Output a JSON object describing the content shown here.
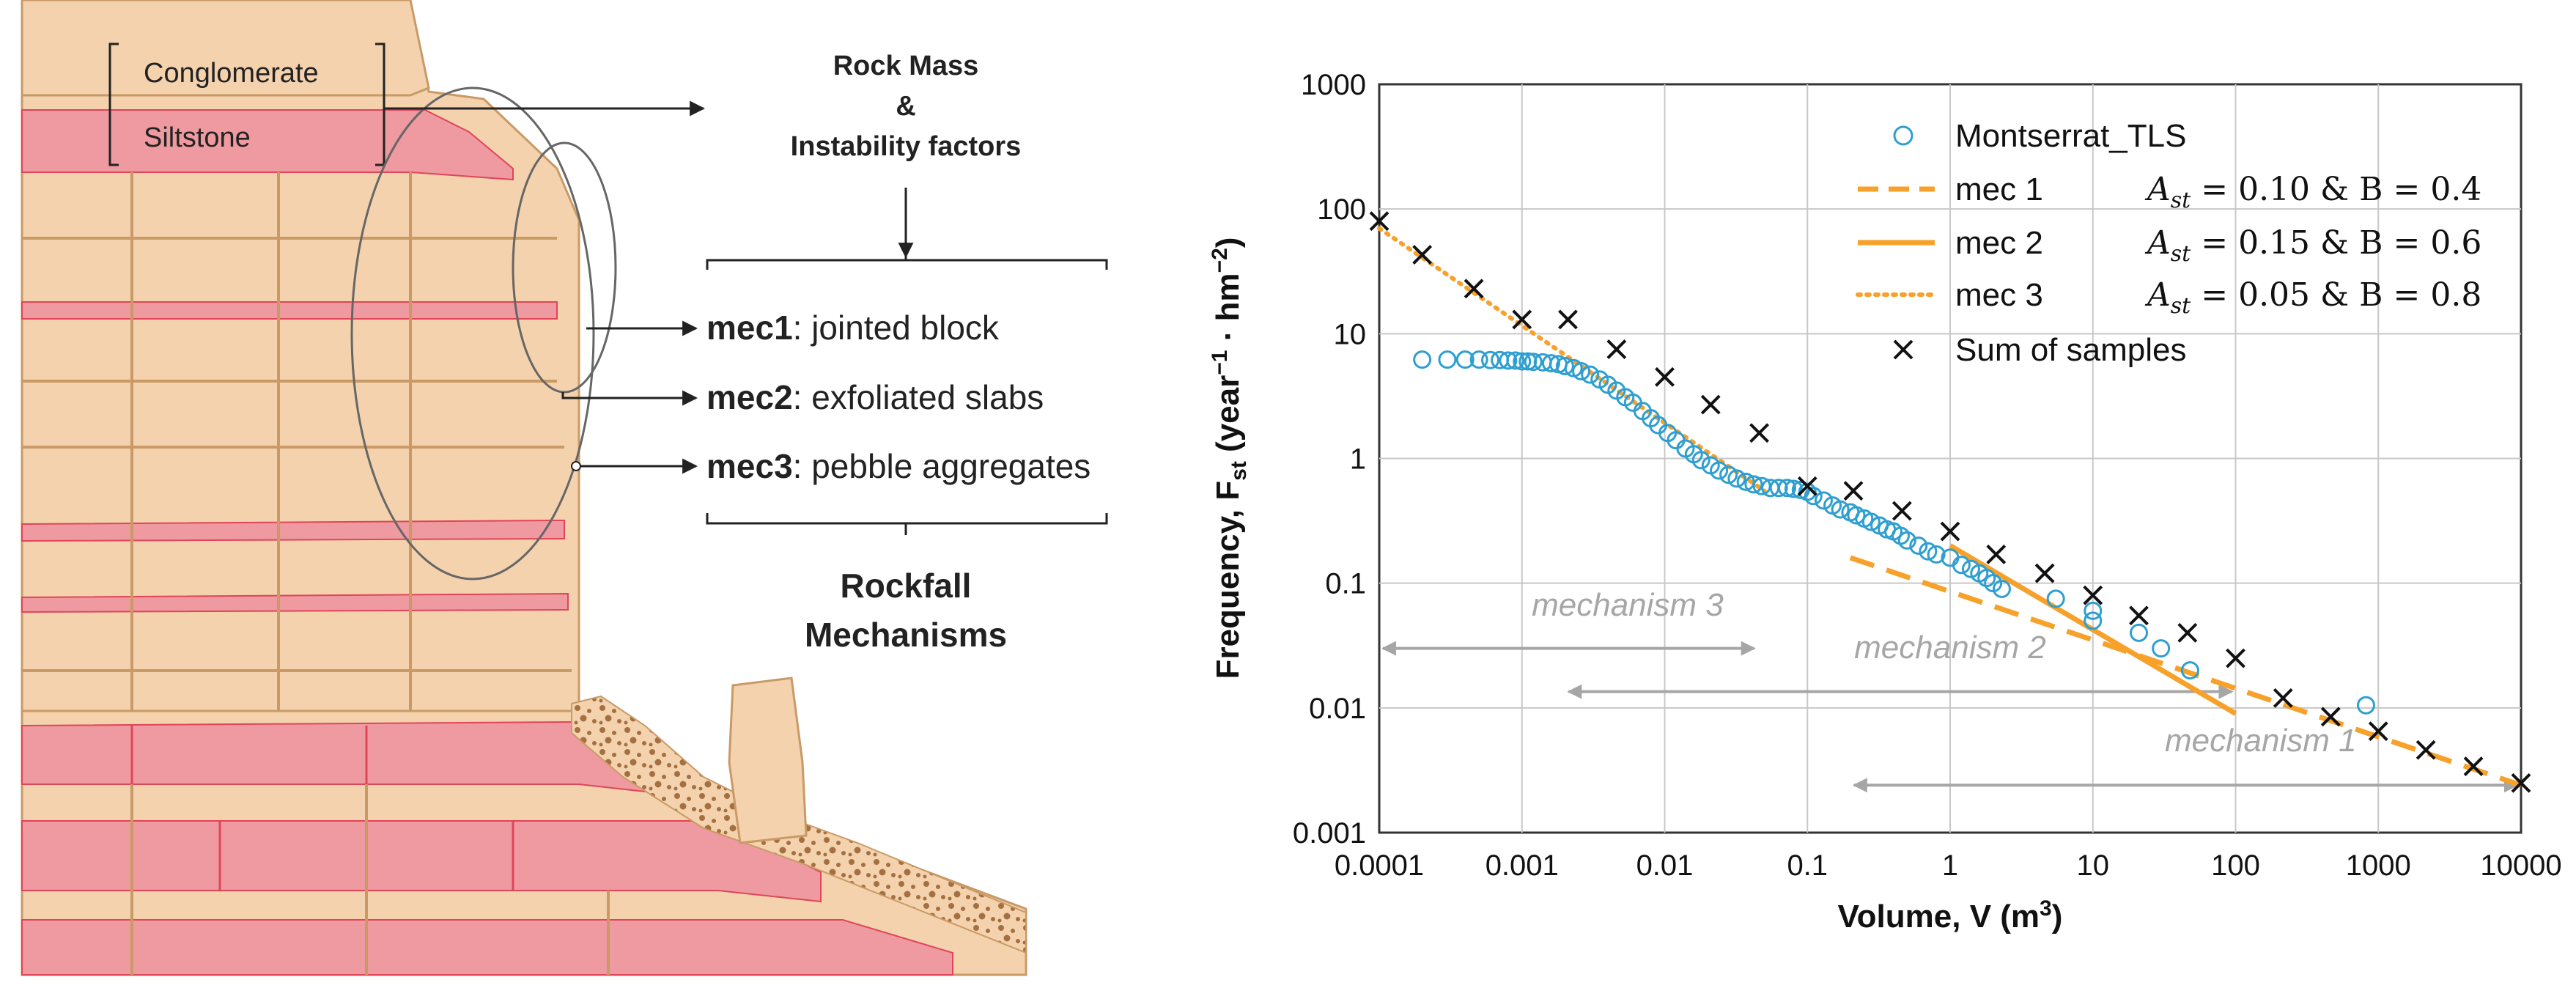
{
  "diagram": {
    "layers": {
      "conglomerate": "Conglomerate",
      "siltstone": "Siltstone"
    },
    "rock_mass_title_line1": "Rock Mass",
    "rock_mass_title_line2": "&",
    "rock_mass_title_line3": "Instability factors",
    "mechanisms": [
      {
        "name": "mec1",
        "desc": ": jointed block"
      },
      {
        "name": "mec2",
        "desc": ": exfoliated slabs"
      },
      {
        "name": "mec3",
        "desc": ": pebble aggregates"
      }
    ],
    "footer_line1": "Rockfall",
    "footer_line2": "Mechanisms",
    "colors": {
      "sand": "#f3d2ad",
      "siltstone": "#ee9aa0",
      "siltstone_stroke": "#e0455a",
      "outline": "#c99a66",
      "debris": "#a47042"
    }
  },
  "chart_data": {
    "type": "scatter",
    "title": "",
    "xlabel_main": "Volume, V (m",
    "xlabel_sup": "3",
    "xlabel_close": ")",
    "ylabel_main": "Frequency, F",
    "ylabel_sub": "st",
    "ylabel_rest": " (year",
    "ylabel_sup1": "−1",
    "ylabel_mid": " · hm",
    "ylabel_sup2": "−2",
    "ylabel_close": ")",
    "x_scale": "log",
    "y_scale": "log",
    "xlim": [
      0.0001,
      10000
    ],
    "ylim": [
      0.001,
      1000
    ],
    "x_ticks": [
      "0.0001",
      "0.001",
      "0.01",
      "0.1",
      "1",
      "10",
      "100",
      "1000",
      "10000"
    ],
    "y_ticks": [
      "0.001",
      "0.01",
      "0.1",
      "1",
      "10",
      "100",
      "1000"
    ],
    "grid": true,
    "legend_position": "top-right",
    "colors": {
      "tls": "#2e9fd0",
      "mec": "#f7a12b",
      "sum": "#111111",
      "annot": "#a6a6a6",
      "grid": "#c8c8c8"
    },
    "series": [
      {
        "name": "Montserrat_TLS",
        "style": "circle",
        "x": [
          0.0002,
          0.0003,
          0.0004,
          0.0005,
          0.0006,
          0.0007,
          0.0008,
          0.0009,
          0.001,
          0.0011,
          0.0012,
          0.0014,
          0.0016,
          0.0018,
          0.002,
          0.0023,
          0.0026,
          0.003,
          0.0035,
          0.004,
          0.0046,
          0.0053,
          0.006,
          0.007,
          0.008,
          0.009,
          0.0105,
          0.012,
          0.014,
          0.016,
          0.018,
          0.021,
          0.024,
          0.028,
          0.032,
          0.037,
          0.042,
          0.048,
          0.055,
          0.063,
          0.072,
          0.08,
          0.09,
          0.1,
          0.11,
          0.13,
          0.15,
          0.17,
          0.2,
          0.22,
          0.25,
          0.28,
          0.32,
          0.36,
          0.4,
          0.45,
          0.5,
          0.6,
          0.7,
          0.8,
          1.0,
          1.2,
          1.4,
          1.6,
          1.8,
          2.0,
          2.3,
          5.5,
          10,
          10,
          21,
          30,
          48,
          820
        ],
        "y": [
          6.2,
          6.2,
          6.2,
          6.2,
          6.15,
          6.15,
          6.1,
          6.1,
          6.0,
          6.0,
          5.95,
          5.9,
          5.8,
          5.7,
          5.5,
          5.3,
          5.0,
          4.7,
          4.3,
          3.9,
          3.5,
          3.1,
          2.8,
          2.4,
          2.1,
          1.85,
          1.6,
          1.4,
          1.2,
          1.08,
          0.97,
          0.88,
          0.8,
          0.74,
          0.69,
          0.65,
          0.62,
          0.6,
          0.58,
          0.58,
          0.58,
          0.57,
          0.56,
          0.54,
          0.5,
          0.46,
          0.42,
          0.39,
          0.37,
          0.35,
          0.33,
          0.31,
          0.29,
          0.27,
          0.26,
          0.24,
          0.22,
          0.2,
          0.18,
          0.17,
          0.16,
          0.14,
          0.13,
          0.12,
          0.11,
          0.1,
          0.09,
          0.075,
          0.06,
          0.05,
          0.04,
          0.03,
          0.02,
          0.0105
        ]
      },
      {
        "name": "mec 1",
        "style": "dash",
        "x": [
          0.2,
          10000
        ],
        "y": [
          0.16,
          0.0024
        ]
      },
      {
        "name": "mec 2",
        "style": "solid",
        "x": [
          1,
          100
        ],
        "y": [
          0.2,
          0.009
        ]
      },
      {
        "name": "mec 3",
        "style": "dot",
        "x": [
          0.0001,
          0.05
        ],
        "y": [
          70,
          0.55
        ]
      },
      {
        "name": "Sum of samples",
        "style": "cross",
        "x": [
          0.0001,
          0.0002,
          0.00046,
          0.001,
          0.0021,
          0.0046,
          0.01,
          0.021,
          0.046,
          0.1,
          0.21,
          0.46,
          1.0,
          2.1,
          4.6,
          10,
          21,
          46,
          100,
          215,
          464,
          1000,
          2154,
          4642,
          10000
        ],
        "y": [
          80,
          43,
          23,
          13,
          13,
          7.5,
          4.5,
          2.7,
          1.6,
          0.6,
          0.55,
          0.38,
          0.26,
          0.17,
          0.12,
          0.08,
          0.055,
          0.04,
          0.025,
          0.012,
          0.0085,
          0.0065,
          0.0046,
          0.0034,
          0.0025
        ]
      }
    ],
    "legend": [
      {
        "label": "Montserrat_TLS",
        "eq": ""
      },
      {
        "label": "mec 1",
        "eq": "A",
        "eq_sub": "st",
        "eq_rest": " = 0.10 & B = 0.4"
      },
      {
        "label": "mec 2",
        "eq": "A",
        "eq_sub": "st",
        "eq_rest": " = 0.15 & B = 0.6"
      },
      {
        "label": "mec 3",
        "eq": "A",
        "eq_sub": "st",
        "eq_rest": " = 0.05 & B = 0.8"
      },
      {
        "label": "Sum of samples",
        "eq": ""
      }
    ],
    "annotations": [
      {
        "text": "mechanism 3",
        "range": [
          0.0001,
          0.045
        ]
      },
      {
        "text": "mechanism 2",
        "range": [
          0.002,
          100
        ]
      },
      {
        "text": "mechanism 1",
        "range": [
          0.2,
          10000
        ]
      }
    ]
  }
}
